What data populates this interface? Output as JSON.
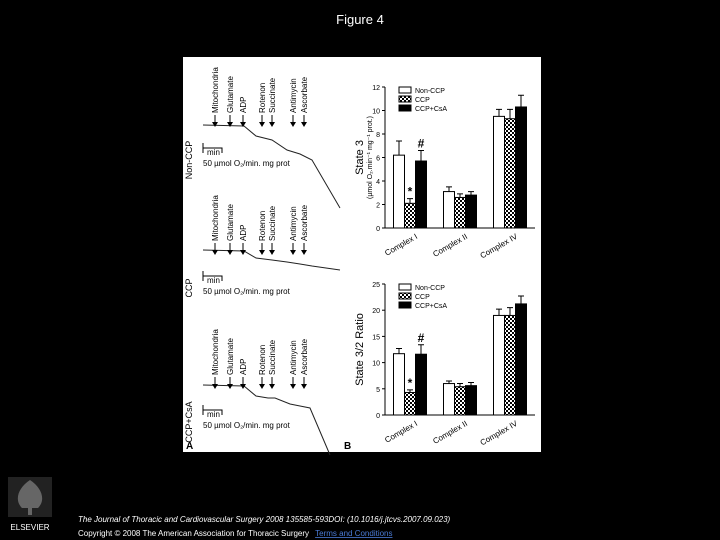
{
  "header": {
    "title": "Figure 4"
  },
  "panel_a": {
    "label": "A",
    "scale_time": "min",
    "scale_rate": "50 µmol O₂/min. mg prot",
    "rows": [
      {
        "condition": "Non-CCP",
        "reagents": [
          "Mitochondria",
          "Glutamate",
          "ADP",
          "Rotenon",
          "Succinate",
          "Antimycin",
          "Ascorbate"
        ]
      },
      {
        "condition": "CCP",
        "reagents": [
          "Mitochondria",
          "Glutamate",
          "ADP",
          "Rotenon",
          "Succinate",
          "Antimycin",
          "Ascorbate"
        ]
      },
      {
        "condition": "CCP+CsA",
        "reagents": [
          "Mitochondria",
          "Glutamate",
          "ADP",
          "Rotenon",
          "Succinate",
          "Antimycin",
          "Ascorbate"
        ]
      }
    ]
  },
  "panel_b": {
    "label": "B"
  },
  "chart_data": [
    {
      "type": "bar",
      "y_label": "State 3",
      "y_sublabel": "(µmol O₂.min⁻¹ mg⁻¹ prot.)",
      "categories": [
        "Complex I",
        "Complex II",
        "Complex IV"
      ],
      "series": [
        {
          "name": "Non-CCP",
          "color": "#ffffff",
          "values": [
            6.2,
            3.1,
            9.5
          ],
          "errors": [
            1.2,
            0.4,
            0.6
          ]
        },
        {
          "name": "CCP",
          "color": "#000000",
          "pattern": "checker",
          "values": [
            2.1,
            2.6,
            9.3
          ],
          "errors": [
            0.4,
            0.3,
            0.8
          ]
        },
        {
          "name": "CCP+CsA",
          "color": "#000000",
          "values": [
            5.7,
            2.8,
            10.3
          ],
          "errors": [
            0.9,
            0.3,
            1.0
          ]
        }
      ],
      "annotations": [
        {
          "text": "*",
          "series": "CCP",
          "category": "Complex I"
        },
        {
          "text": "#",
          "series": "CCP+CsA",
          "category": "Complex I"
        }
      ],
      "ylim": [
        0,
        12
      ],
      "yticks": [
        0,
        2,
        4,
        6,
        8,
        10,
        12
      ]
    },
    {
      "type": "bar",
      "y_label": "State 3/2 Ratio",
      "categories": [
        "Complex I",
        "Complex II",
        "Complex IV"
      ],
      "series": [
        {
          "name": "Non-CCP",
          "color": "#ffffff",
          "values": [
            11.7,
            6.0,
            19.0
          ],
          "errors": [
            1.0,
            0.5,
            1.2
          ]
        },
        {
          "name": "CCP",
          "color": "#000000",
          "pattern": "checker",
          "values": [
            4.3,
            5.4,
            19.0
          ],
          "errors": [
            0.5,
            0.6,
            1.5
          ]
        },
        {
          "name": "CCP+CsA",
          "color": "#000000",
          "values": [
            11.6,
            5.6,
            21.2
          ],
          "errors": [
            1.8,
            0.6,
            1.5
          ]
        }
      ],
      "annotations": [
        {
          "text": "*",
          "series": "CCP",
          "category": "Complex I"
        },
        {
          "text": "#",
          "series": "CCP+CsA",
          "category": "Complex I"
        }
      ],
      "ylim": [
        0,
        25
      ],
      "yticks": [
        0,
        5,
        10,
        15,
        20,
        25
      ]
    }
  ],
  "footer": {
    "publisher": "ELSEVIER",
    "citation": "The Journal of Thoracic and Cardiovascular Surgery 2008 135585-593DOI: (10.1016/j.jtcvs.2007.09.023)",
    "copyright": "Copyright © 2008 The American Association for Thoracic Surgery",
    "link": "Terms and Conditions"
  }
}
